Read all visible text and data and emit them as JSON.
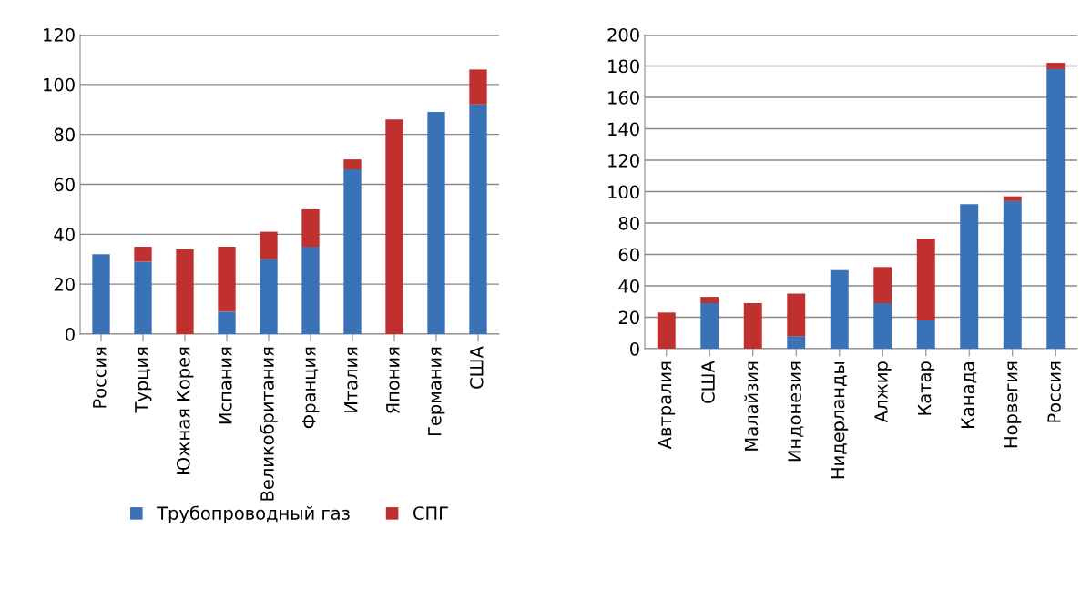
{
  "chart_data": [
    {
      "type": "bar",
      "stacked": true,
      "categories": [
        "Россия",
        "Турция",
        "Южная Корея",
        "Испания",
        "Великобритания",
        "Франция",
        "Италия",
        "Япония",
        "Германия",
        "США"
      ],
      "series": [
        {
          "name": "Трубопроводный газ",
          "color": "#3a72b8",
          "values": [
            32,
            29,
            0,
            9,
            30,
            35,
            66,
            0,
            89,
            92
          ]
        },
        {
          "name": "СПГ",
          "color": "#c0302f",
          "values": [
            0,
            6,
            34,
            26,
            11,
            15,
            4,
            86,
            0,
            14
          ]
        }
      ],
      "ylim": [
        0,
        120
      ],
      "yticks": [
        0,
        20,
        40,
        60,
        80,
        100,
        120
      ],
      "grid": "y",
      "legend": "bottom"
    },
    {
      "type": "bar",
      "stacked": true,
      "categories": [
        "Автралия",
        "США",
        "Малайзия",
        "Индонезия",
        "Нидерланды",
        "Алжир",
        "Катар",
        "Канада",
        "Норвегия",
        "Россия"
      ],
      "series": [
        {
          "color": "#3a72b8",
          "values": [
            0,
            29,
            0,
            8,
            50,
            29,
            18,
            92,
            94,
            178
          ]
        },
        {
          "color": "#c0302f",
          "values": [
            23,
            4,
            29,
            27,
            0,
            23,
            52,
            0,
            3,
            4
          ]
        }
      ],
      "ylim": [
        0,
        200
      ],
      "yticks": [
        0,
        20,
        40,
        60,
        80,
        100,
        120,
        140,
        160,
        180,
        200
      ],
      "grid": "y"
    }
  ]
}
